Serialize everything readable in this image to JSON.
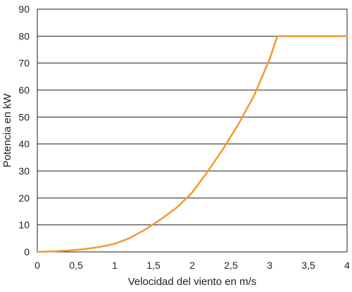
{
  "chart_data": {
    "type": "line",
    "xlabel": "Velocidad del viento en m/s",
    "ylabel": "Potencia en kW",
    "xlim": [
      0,
      4
    ],
    "ylim": [
      0,
      90
    ],
    "x_ticks": [
      0,
      0.5,
      1,
      1.5,
      2,
      2.5,
      3,
      3.5,
      4
    ],
    "x_tick_labels": [
      "0",
      "0,5",
      "1",
      "1,5",
      "2",
      "2,5",
      "3",
      "3,5",
      "4"
    ],
    "y_ticks": [
      0,
      10,
      20,
      30,
      40,
      50,
      60,
      70,
      80,
      90
    ],
    "y_tick_labels": [
      "0",
      "10",
      "20",
      "30",
      "40",
      "50",
      "60",
      "70",
      "80",
      "90"
    ],
    "grid": "horizontal",
    "colors": {
      "line": "#f39a2b",
      "grid": "#231f20",
      "frame": "#231f20"
    },
    "series": [
      {
        "x": [
          0,
          0.2,
          0.4,
          0.6,
          0.8,
          1.0,
          1.2,
          1.4,
          1.6,
          1.8,
          2.0,
          2.2,
          2.4,
          2.6,
          2.8,
          3.0,
          3.1,
          3.5,
          4.0
        ],
        "y": [
          0,
          0.2,
          0.5,
          1.0,
          1.8,
          3.0,
          5.2,
          8.4,
          12.2,
          16.4,
          22.0,
          29.8,
          38.2,
          47.5,
          58.0,
          71.5,
          80,
          80,
          80
        ]
      }
    ]
  }
}
